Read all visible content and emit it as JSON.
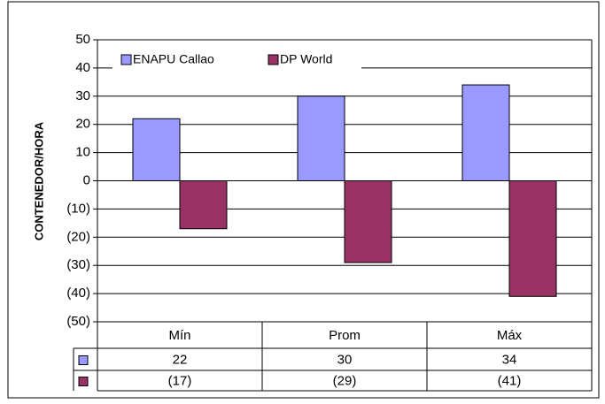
{
  "chart_data": {
    "type": "bar",
    "y_axis_label": "CONTENEDOR/HORA",
    "categories": [
      "Mín",
      "Prom",
      "Máx"
    ],
    "series": [
      {
        "name": "ENAPU Callao",
        "color": "#9999ff",
        "values": [
          22,
          30,
          34
        ]
      },
      {
        "name": "DP World",
        "color": "#993366",
        "values": [
          -17,
          -29,
          -41
        ],
        "value_labels": [
          "(17)",
          "(29)",
          "(41)"
        ]
      }
    ],
    "ylim": [
      -50,
      50
    ],
    "yticks": [
      {
        "value": -50,
        "label": "(50)"
      },
      {
        "value": -40,
        "label": "(40)"
      },
      {
        "value": -30,
        "label": "(30)"
      },
      {
        "value": -20,
        "label": "(20)"
      },
      {
        "value": -10,
        "label": "(10)"
      },
      0,
      10,
      20,
      30,
      40,
      50
    ],
    "grid": true,
    "legend": "top"
  }
}
